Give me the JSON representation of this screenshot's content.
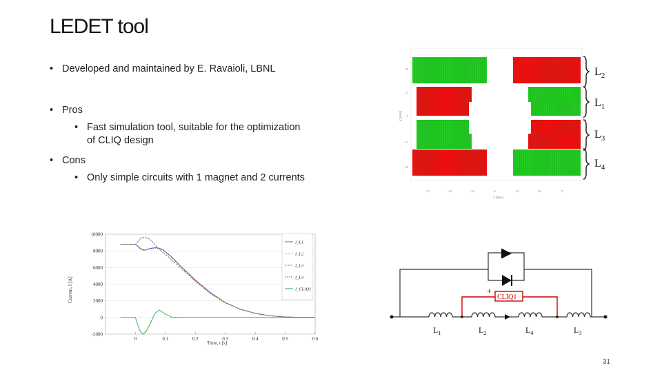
{
  "slide": {
    "title": "LEDET tool",
    "page_number": "31"
  },
  "bullets": {
    "b1": "Developed and maintained by E. Ravaioli, LBNL",
    "b2": "Pros",
    "b2a_line1": "Fast simulation tool, suitable for the optimization",
    "b2a_line2": "of CLIQ design",
    "b3": "Cons",
    "b3a": "Only simple circuits with 1 magnet and 2 currents"
  },
  "layout_figure": {
    "labels": [
      "L2",
      "L1",
      "L3",
      "L4"
    ],
    "y_ticks": [
      "30",
      "15",
      "0",
      "-15",
      "-30"
    ],
    "x_ticks": [
      "-75",
      "-50",
      "-25",
      "0",
      "25",
      "50",
      "75"
    ],
    "x_label": "x [mm]",
    "y_label": "y [mm]",
    "colors": {
      "green": "#22cc22",
      "red": "#ee1111"
    }
  },
  "circuit": {
    "inductor_labels": [
      "L1",
      "L2",
      "L4",
      "L3"
    ],
    "cliq_label": "CLIQ1",
    "plus_sign": "+",
    "colors": {
      "wire": "#333333",
      "cliq": "#cc0000"
    }
  },
  "chart_data": {
    "type": "line",
    "xlabel": "Time, t [s]",
    "ylabel": "Current, I [A]",
    "xlim": [
      0,
      0.6
    ],
    "ylim": [
      -2000,
      10000
    ],
    "x_ticks": [
      0,
      0.1,
      0.2,
      0.3,
      0.4,
      0.5,
      0.6
    ],
    "y_ticks": [
      -2000,
      0,
      2000,
      4000,
      6000,
      8000,
      10000
    ],
    "x_tick_labels": [
      "0",
      "0.1",
      "0.2",
      "0.3",
      "0.4",
      "0.5",
      "0.6"
    ],
    "y_tick_labels": [
      "-2000",
      "0",
      "2000",
      "4000",
      "6000",
      "8000",
      "10000"
    ],
    "series": [
      {
        "name": "I_L1",
        "color": "#9b3fb5",
        "x": [
          -0.05,
          0.0,
          0.01,
          0.02,
          0.03,
          0.05,
          0.07,
          0.09,
          0.12,
          0.15,
          0.2,
          0.25,
          0.3,
          0.35,
          0.4,
          0.45,
          0.5,
          0.55,
          0.6
        ],
        "y": [
          8800,
          8800,
          8500,
          8200,
          8100,
          8300,
          8400,
          8200,
          7300,
          6200,
          4500,
          3000,
          1800,
          1000,
          500,
          200,
          60,
          20,
          0
        ]
      },
      {
        "name": "I_L2",
        "color": "#e8b800",
        "x": [
          -0.05,
          0.0,
          0.01,
          0.02,
          0.03,
          0.05,
          0.07,
          0.09,
          0.12,
          0.15,
          0.2,
          0.25,
          0.3,
          0.35,
          0.4,
          0.45,
          0.5,
          0.55,
          0.6
        ],
        "y": [
          8800,
          8800,
          9200,
          9600,
          9700,
          9400,
          8600,
          7900,
          7000,
          6000,
          4400,
          2900,
          1800,
          1000,
          500,
          200,
          60,
          20,
          0
        ]
      },
      {
        "name": "I_L3",
        "color": "#5577aa",
        "x": [
          -0.05,
          0.0,
          0.01,
          0.02,
          0.03,
          0.05,
          0.07,
          0.09,
          0.12,
          0.15,
          0.2,
          0.25,
          0.3,
          0.35,
          0.4,
          0.45,
          0.5,
          0.55,
          0.6
        ],
        "y": [
          8800,
          8800,
          9150,
          9550,
          9650,
          9350,
          8550,
          7850,
          6950,
          5950,
          4350,
          2850,
          1750,
          980,
          480,
          190,
          55,
          18,
          0
        ]
      },
      {
        "name": "I_L4",
        "color": "#555555",
        "x": [
          -0.05,
          0.0,
          0.01,
          0.02,
          0.03,
          0.05,
          0.07,
          0.09,
          0.12,
          0.15,
          0.2,
          0.25,
          0.3,
          0.35,
          0.4,
          0.45,
          0.5,
          0.55,
          0.6
        ],
        "y": [
          8800,
          8800,
          8450,
          8150,
          8050,
          8250,
          8350,
          8150,
          7250,
          6150,
          4450,
          2950,
          1780,
          990,
          490,
          195,
          58,
          19,
          0
        ]
      },
      {
        "name": "I_CLIQ1",
        "color": "#22aa44",
        "x": [
          -0.05,
          0.0,
          0.005,
          0.015,
          0.025,
          0.035,
          0.05,
          0.065,
          0.08,
          0.1,
          0.12,
          0.15,
          0.2,
          0.3,
          0.4,
          0.5,
          0.6
        ],
        "y": [
          0,
          0,
          -600,
          -1600,
          -2000,
          -1700,
          -700,
          500,
          900,
          400,
          50,
          0,
          0,
          0,
          0,
          0,
          0
        ]
      }
    ],
    "legend": [
      "I_L1",
      "I_L2",
      "I_L3",
      "I_L4",
      "I_CLIQ1"
    ],
    "legend_position": "right"
  }
}
